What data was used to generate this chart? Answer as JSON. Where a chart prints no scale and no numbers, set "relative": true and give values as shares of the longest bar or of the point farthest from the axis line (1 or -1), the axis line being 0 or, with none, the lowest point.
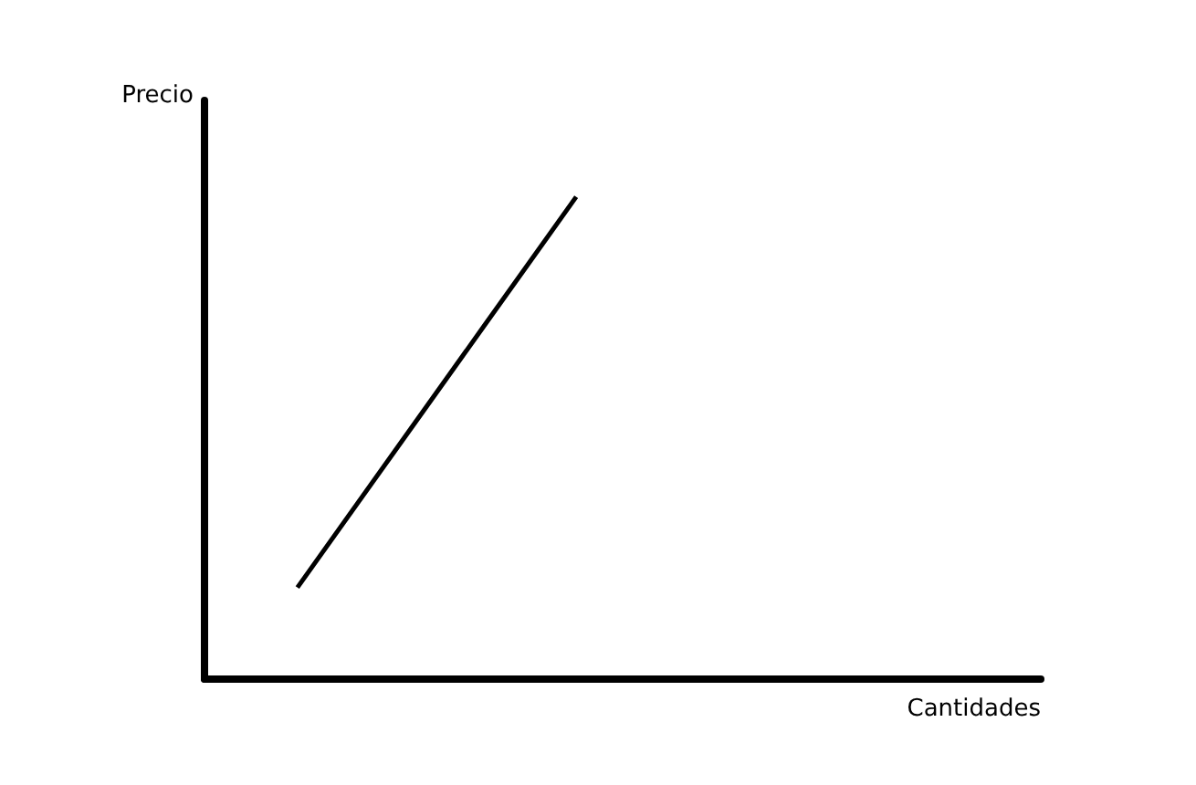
{
  "chart_data": {
    "type": "line",
    "relative": true,
    "xlabel": "Cantidades",
    "ylabel": "Precio",
    "categories": [
      null,
      null,
      null,
      null,
      null,
      null,
      null,
      null,
      null,
      null
    ],
    "series": [
      {
        "color": "#000000",
        "values": [
          null,
          0.19,
          0.46,
          0.73,
          1,
          null,
          null,
          null,
          null,
          null
        ]
      }
    ],
    "marker": "none",
    "grid": false
  }
}
